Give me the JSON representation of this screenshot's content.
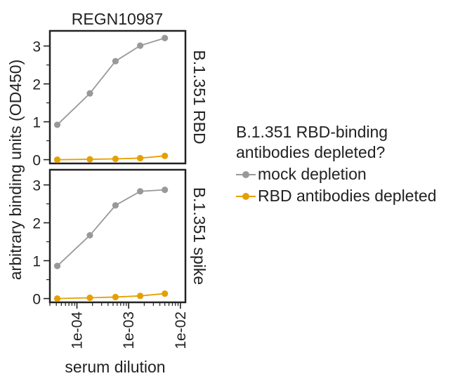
{
  "chart_data": {
    "type": "line",
    "title": "REGN10987",
    "xlabel": "serum dilution",
    "ylabel": "arbitrary binding units (OD450)",
    "x_scale": "log",
    "xlim": [
      3e-05,
      0.0125
    ],
    "x_ticks": [
      0.0001,
      0.001,
      0.01
    ],
    "x_tick_labels": [
      "1e-04",
      "1e-03",
      "1e-02"
    ],
    "ylim": [
      -0.1,
      3.4
    ],
    "y_ticks": [
      0,
      1,
      2,
      3
    ],
    "grid": false,
    "legend": {
      "title": "B.1.351 RBD-binding antibodies depleted?",
      "position": "right"
    },
    "panels": [
      {
        "label": "B.1.351 RBD",
        "x": [
          4.17e-05,
          0.000178,
          0.000556,
          0.00167,
          0.005
        ],
        "series": [
          {
            "name": "mock depletion",
            "color": "#999999",
            "values": [
              0.92,
              1.75,
              2.6,
              3.01,
              3.21
            ]
          },
          {
            "name": "RBD antibodies depleted",
            "color": "#E69F00",
            "values": [
              0.0,
              0.01,
              0.02,
              0.04,
              0.1
            ]
          }
        ]
      },
      {
        "label": "B.1.351 spike",
        "x": [
          4.17e-05,
          0.000178,
          0.000556,
          0.00167,
          0.005
        ],
        "series": [
          {
            "name": "mock depletion",
            "color": "#999999",
            "values": [
              0.86,
              1.67,
              2.46,
              2.83,
              2.87
            ]
          },
          {
            "name": "RBD antibodies depleted",
            "color": "#E69F00",
            "values": [
              0.0,
              0.02,
              0.04,
              0.07,
              0.13
            ]
          }
        ]
      }
    ]
  }
}
